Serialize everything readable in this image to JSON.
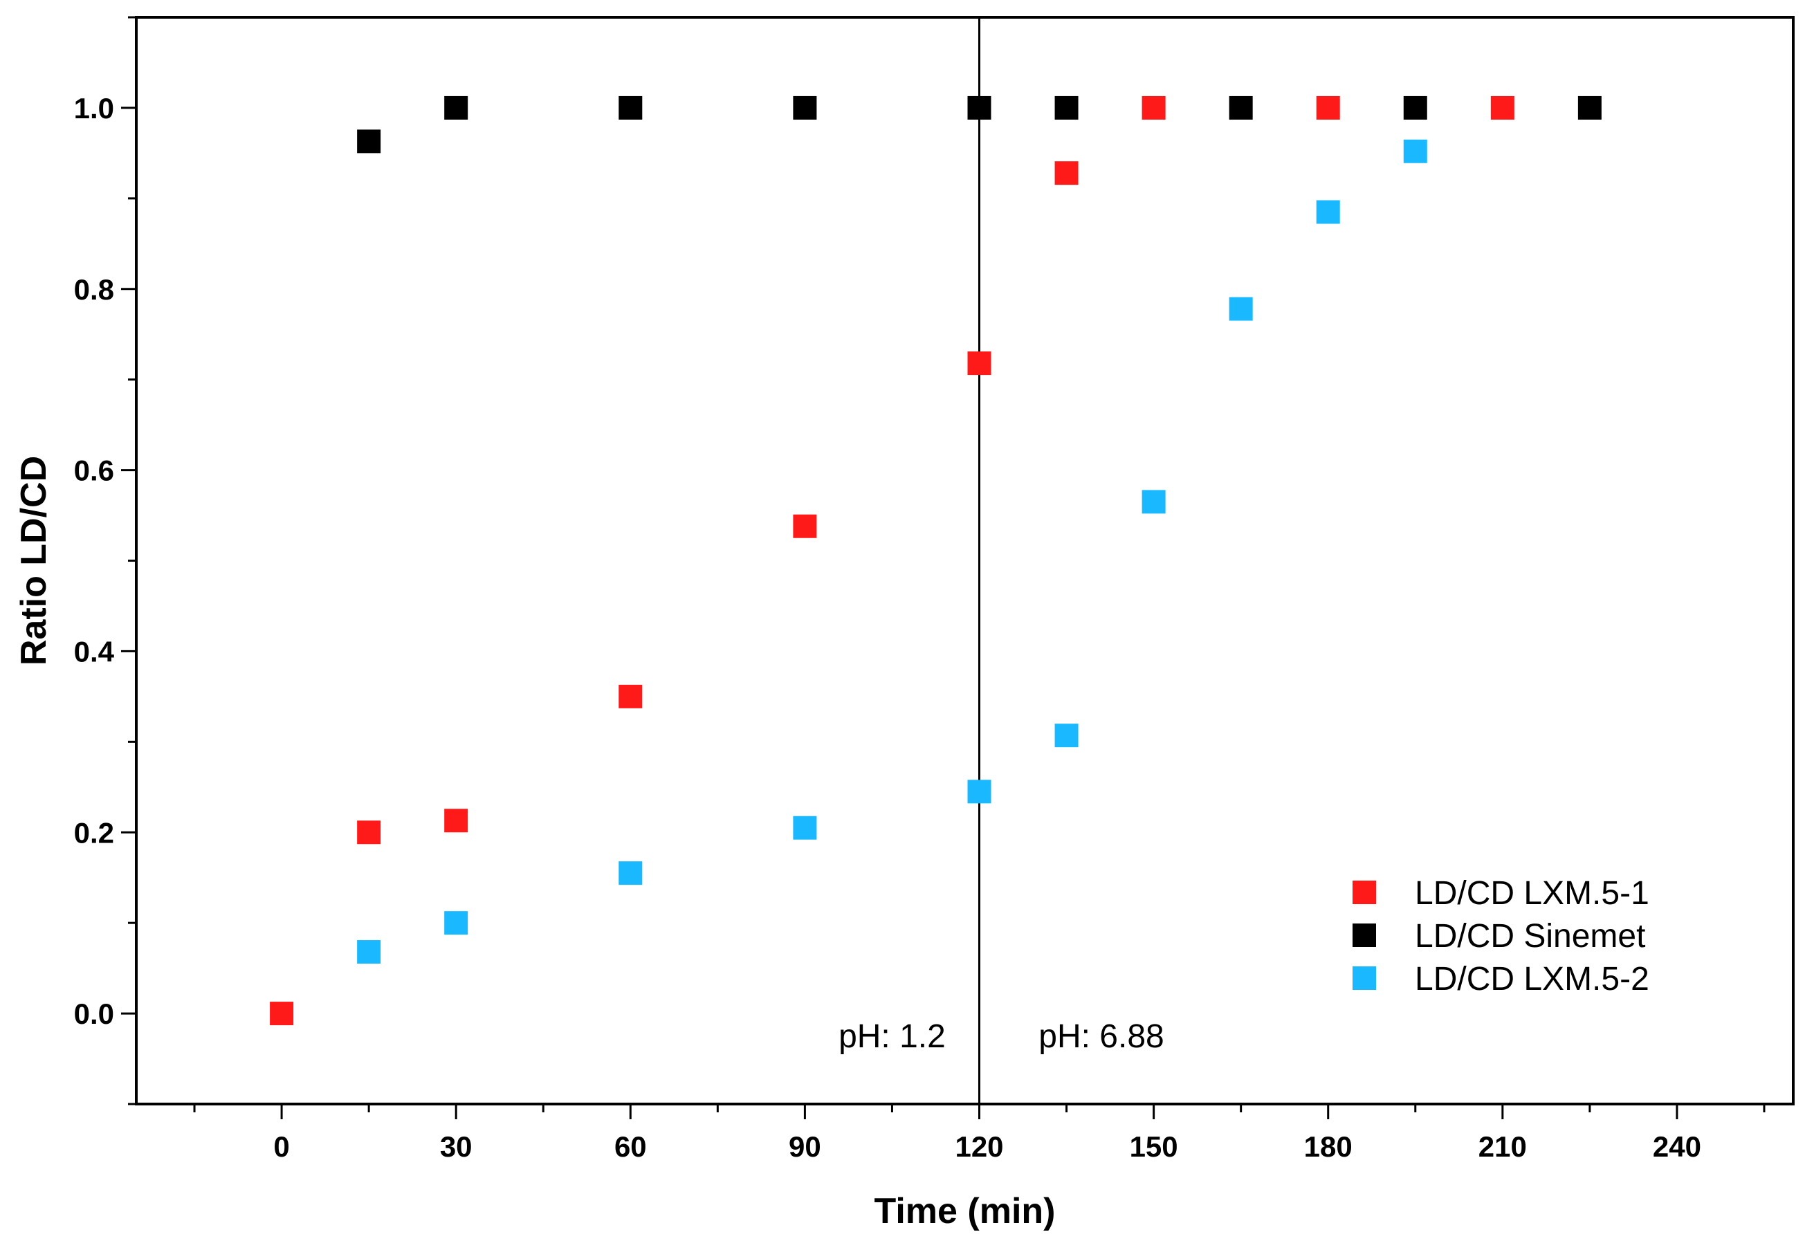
{
  "chart_data": {
    "type": "scatter",
    "title": "",
    "xlabel": "Time (min)",
    "ylabel": "Ratio LD/CD",
    "xlim": [
      -25,
      260
    ],
    "ylim": [
      -0.1,
      1.1
    ],
    "xticks": [
      0,
      30,
      60,
      90,
      120,
      150,
      180,
      210,
      240
    ],
    "xtick_labels": [
      "0",
      "30",
      "60",
      "90",
      "120",
      "150",
      "180",
      "210",
      "240"
    ],
    "yticks": [
      0.0,
      0.2,
      0.4,
      0.6,
      0.8,
      1.0
    ],
    "ytick_labels": [
      "0.0",
      "0.2",
      "0.4",
      "0.6",
      "0.8",
      "1.0"
    ],
    "grid": false,
    "legend_position": "bottom-right",
    "series": [
      {
        "name": "LD/CD LXM.5-1",
        "color": "#ff1a1a",
        "x": [
          0,
          15,
          30,
          60,
          90,
          120,
          135,
          150,
          180,
          210
        ],
        "y": [
          0.0,
          0.2,
          0.213,
          0.35,
          0.538,
          0.718,
          0.928,
          1.0,
          1.0,
          1.0
        ]
      },
      {
        "name": "LD/CD Sinemet",
        "color": "#000000",
        "x": [
          15,
          30,
          60,
          90,
          120,
          135,
          165,
          195,
          225
        ],
        "y": [
          0.963,
          1.0,
          1.0,
          1.0,
          1.0,
          1.0,
          1.0,
          1.0,
          1.0
        ]
      },
      {
        "name": "LD/CD LXM.5-2",
        "color": "#1ab8ff",
        "x": [
          15,
          30,
          60,
          90,
          120,
          135,
          150,
          165,
          180,
          195
        ],
        "y": [
          0.068,
          0.1,
          0.155,
          0.205,
          0.245,
          0.307,
          0.565,
          0.778,
          0.885,
          0.952
        ]
      }
    ],
    "vertical_line": {
      "x": 120
    },
    "annotations": [
      {
        "text": "pH: 1.2",
        "x": 105,
        "y": -0.025
      },
      {
        "text": "pH: 6.88",
        "x": 141,
        "y": -0.025
      }
    ],
    "legend_order": [
      "LD/CD LXM.5-1",
      "LD/CD Sinemet",
      "LD/CD LXM.5-2"
    ]
  }
}
